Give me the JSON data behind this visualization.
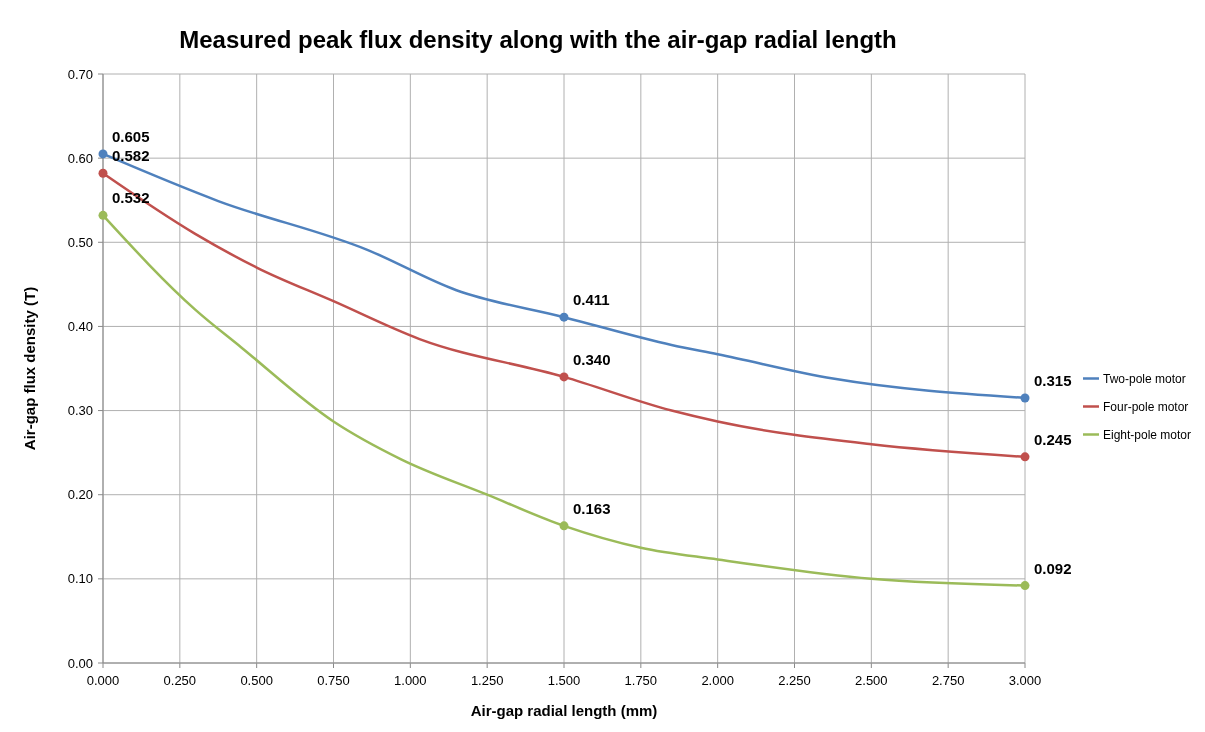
{
  "chart_data": {
    "type": "line",
    "title": "Measured peak flux density along with the air-gap radial length",
    "xlabel": "Air-gap radial length (mm)",
    "ylabel": "Air-gap flux density (T)",
    "xlim": [
      0,
      3
    ],
    "ylim": [
      0,
      0.7
    ],
    "xticks": [
      {
        "value": 0,
        "label": "0.000"
      },
      {
        "value": 0.25,
        "label": "0.250"
      },
      {
        "value": 0.5,
        "label": "0.500"
      },
      {
        "value": 0.75,
        "label": "0.750"
      },
      {
        "value": 1,
        "label": "1.000"
      },
      {
        "value": 1.25,
        "label": "1.250"
      },
      {
        "value": 1.5,
        "label": "1.500"
      },
      {
        "value": 1.75,
        "label": "1.750"
      },
      {
        "value": 2,
        "label": "2.000"
      },
      {
        "value": 2.25,
        "label": "2.250"
      },
      {
        "value": 2.5,
        "label": "2.500"
      },
      {
        "value": 2.75,
        "label": "2.750"
      },
      {
        "value": 3,
        "label": "3.000"
      }
    ],
    "yticks": [
      {
        "value": 0,
        "label": "0.00"
      },
      {
        "value": 0.1,
        "label": "0.10"
      },
      {
        "value": 0.2,
        "label": "0.20"
      },
      {
        "value": 0.3,
        "label": "0.30"
      },
      {
        "value": 0.4,
        "label": "0.40"
      },
      {
        "value": 0.5,
        "label": "0.50"
      },
      {
        "value": 0.6,
        "label": "0.60"
      },
      {
        "value": 0.7,
        "label": "0.70"
      }
    ],
    "grid": true,
    "legend": "right",
    "marker": "none",
    "line_style": "solid",
    "series": [
      {
        "name": "Two-pole motor",
        "color": "#4f81bd",
        "x": [
          0,
          0.375,
          0.86,
          1.15,
          1.5,
          1.85,
          2,
          2.375,
          3
        ],
        "values": [
          0.605,
          0.549,
          0.491,
          0.443,
          0.411,
          0.378,
          0.367,
          0.338,
          0.315
        ]
      },
      {
        "name": "Four-pole motor",
        "color": "#c0504d",
        "x": [
          0,
          0.3,
          0.5,
          0.75,
          1.03,
          1.5,
          1.85,
          2,
          2.5,
          3
        ],
        "values": [
          0.582,
          0.51,
          0.47,
          0.43,
          0.385,
          0.34,
          0.3,
          0.287,
          0.26,
          0.245
        ]
      },
      {
        "name": "Eight-pole motor",
        "color": "#9bbb59",
        "x": [
          0,
          0.3,
          0.45,
          0.75,
          0.97,
          1.25,
          1.5,
          1.75,
          2,
          2.5,
          3
        ],
        "values": [
          0.532,
          0.42,
          0.375,
          0.287,
          0.242,
          0.2,
          0.163,
          0.137,
          0.123,
          0.1,
          0.092
        ]
      },
      {
        "type": "scatter",
        "marker": "circle",
        "color": "#4f81bd",
        "x": [
          0,
          1.5,
          3
        ],
        "values": [
          0.605,
          0.411,
          0.315
        ],
        "value_labels": [
          "0.605",
          "0.411",
          "0.315"
        ]
      },
      {
        "type": "scatter",
        "marker": "circle",
        "color": "#c0504d",
        "x": [
          0,
          1.5,
          3
        ],
        "values": [
          0.582,
          0.34,
          0.245
        ],
        "value_labels": [
          "0.582",
          "0.340",
          "0.245"
        ]
      },
      {
        "type": "scatter",
        "marker": "circle",
        "color": "#9bbb59",
        "x": [
          0,
          1.5,
          3
        ],
        "values": [
          0.532,
          0.163,
          0.092
        ],
        "value_labels": [
          "0.532",
          "0.163",
          "0.092"
        ]
      }
    ]
  }
}
